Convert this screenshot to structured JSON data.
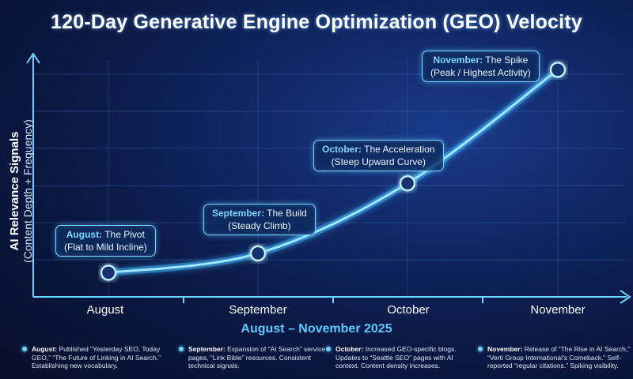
{
  "title": "120-Day Generative Engine Optimization (GEO) Velocity",
  "colors": {
    "accent": "#5fcaff",
    "line": "#8fe0ff",
    "background": "#0f2560"
  },
  "chart_data": {
    "type": "line",
    "title": "120-Day Generative Engine Optimization (GEO) Velocity",
    "xlabel": "August – November 2025",
    "ylabel_line1": "AI Relevance Signals",
    "ylabel_line2": "(Content Depth + Frequency)",
    "categories": [
      "August",
      "September",
      "October",
      "November"
    ],
    "series": [
      {
        "name": "GEO Velocity",
        "values": [
          1.0,
          1.8,
          4.7,
          9.4
        ]
      }
    ],
    "ylim": [
      0,
      10
    ],
    "grid": true,
    "annotations": [
      {
        "month": "August:",
        "phase": "The Pivot",
        "detail": "(Flat to Mild Incline)"
      },
      {
        "month": "September:",
        "phase": "The Build",
        "detail": "(Steady Climb)"
      },
      {
        "month": "October:",
        "phase": "The Acceleration",
        "detail": "(Steep Upward Curve)"
      },
      {
        "month": "November:",
        "phase": "The Spike",
        "detail": "(Peak / Highest Activity)"
      }
    ]
  },
  "notes": [
    {
      "key": "August:",
      "text": "Published “Yesterday SEO, Today GEO,” “The Future of Linking in AI Search.” Establishing new vocabulary."
    },
    {
      "key": "September:",
      "text": "Expansion of “AI Search” service pages, “Link Bible” resources. Consistent technical signals."
    },
    {
      "key": "October:",
      "text": "Increased GEO-specific blogs. Updates to “Seattle SEO” pages with AI context. Content density increases."
    },
    {
      "key": "November:",
      "text": "Release of “The Rise in AI Search,” “Verti Group International’s Comeback.” Self-reported “regular citations.” Spiking visibility."
    }
  ]
}
